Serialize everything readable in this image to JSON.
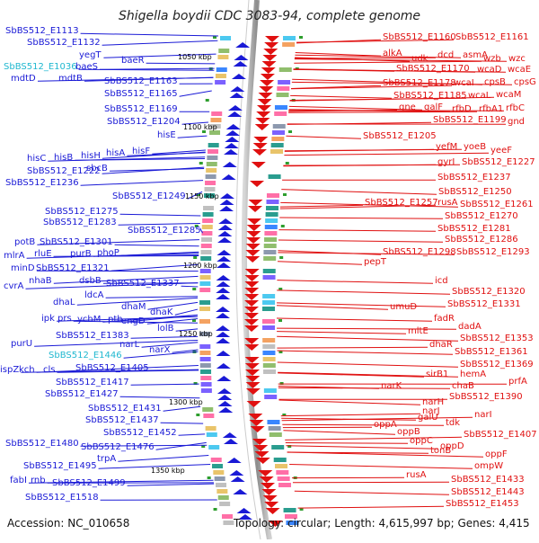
{
  "title": "Shigella boydii CDC 3083-94, complete genome",
  "accession": "Accession: NC_010658",
  "summary": "Topology: circular; Length: 4,615,997 bp; Genes: 4,415",
  "colors": {
    "left_labels": "#1a1ad6",
    "highlight": "#20b8d0",
    "right_labels": "#e01010",
    "ring": "#909090"
  },
  "kbp_marks": [
    "1050 kbp",
    "1100 kbp",
    "1150 kbp",
    "1200 kbp",
    "1250 kbp",
    "1300 kbp",
    "1350 kbp"
  ],
  "left_labels": [
    "SbBS512_E1113",
    "SbBS512_E1132",
    "yegT",
    "SbBS512_E1036",
    "baeS",
    "baeR",
    "mdtD",
    "mdtB",
    "SbBS512_E1163",
    "SbBS512_E1165",
    "SbBS512_E1169",
    "SbBS512_E1204",
    "hisE",
    "hisC",
    "hisB",
    "hisH",
    "hisA",
    "hisF",
    "SbBS512_E1222",
    "sbcB",
    "SbBS512_E1236",
    "SbBS512_E1249",
    "SbBS512_E1275",
    "SbBS512_E1283",
    "SbBS512_E1285",
    "potB",
    "SbBS512_E1301",
    "mlrA",
    "rluE",
    "purB",
    "phoP",
    "minD",
    "SbBS512_E1321",
    "cvrA",
    "nhaB",
    "dsbB",
    "SbBS512_E1337",
    "ldcA",
    "dhaL",
    "dhaM",
    "dhaK",
    "ipk",
    "prs",
    "ychM",
    "pth",
    "engD",
    "lolB",
    "SbBS512_E1383",
    "purU",
    "narL",
    "narX",
    "SbBS512_E1446",
    "ispZ",
    "kch",
    "cls",
    "SbBS512_E1405",
    "SbBS512_E1417",
    "SbBS512_E1427",
    "SbBS512_E1431",
    "SbBS512_E1437",
    "SbBS512_E1452",
    "SbBS512_E1480",
    "SbBS512_E1476",
    "trpA",
    "SbBS512_E1495",
    "fabI",
    "rnb",
    "SbBS512_E1499",
    "SbBS512_E1518"
  ],
  "right_labels": [
    "SbBS512_E1160",
    "SbBS512_E1161",
    "alkA",
    "udk",
    "dcd",
    "asmA",
    "wzb",
    "wzc",
    "SbBS512_E1170",
    "wcaD",
    "wcaE",
    "SbBS512_E1178",
    "wcaI",
    "cpsB",
    "cpsG",
    "SbBS512_E1185",
    "wcaL",
    "wcaM",
    "gne",
    "galF",
    "rfbD",
    "rfbA1",
    "rfbC",
    "SbBS512_E1199",
    "gnd",
    "SbBS512_E1205",
    "yefM",
    "yoeB",
    "yeeF",
    "gyrI",
    "SbBS512_E1227",
    "SbBS512_E1237",
    "SbBS512_E1250",
    "SbBS512_E1257",
    "rusA",
    "SbBS512_E1261",
    "SbBS512_E1270",
    "SbBS512_E1281",
    "SbBS512_E1286",
    "SbBS512_E1298",
    "SbBS512_E1293",
    "pepT",
    "icd",
    "SbBS512_E1320",
    "umuD",
    "SbBS512_E1331",
    "fadR",
    "dadA",
    "mltE",
    "SbBS512_E1353",
    "dhaR",
    "SbBS512_E1361",
    "SbBS512_E1369",
    "sirB1",
    "hemA",
    "prfA",
    "narK",
    "chaB",
    "narH",
    "SbBS512_E1390",
    "narJ",
    "narI",
    "galU",
    "tdk",
    "oppA",
    "oppB",
    "SbBS512_E1407",
    "oppC",
    "oppD",
    "tonB",
    "oppF",
    "ompW",
    "rusA",
    "SbBS512_E1433",
    "SbBS512_E1443",
    "SbBS512_E1453"
  ]
}
